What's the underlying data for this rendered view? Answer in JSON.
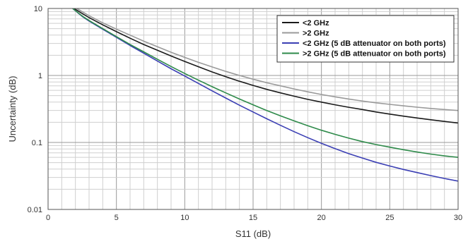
{
  "chart_data": {
    "type": "line",
    "xlabel": "S11 (dB)",
    "ylabel": "Uncertainty (dB)",
    "xlim": [
      0,
      30
    ],
    "ylim": [
      0.01,
      10
    ],
    "yscale": "log",
    "x_ticks": [
      0,
      5,
      10,
      15,
      20,
      25,
      30
    ],
    "x_tick_labels": [
      "0",
      "5",
      "10",
      "15",
      "20",
      "25",
      "30"
    ],
    "y_ticks": [
      0.01,
      0.1,
      1,
      10
    ],
    "y_tick_labels": [
      "0.01",
      "0.1",
      "1",
      "10"
    ],
    "grid": true,
    "legend_position": "top-right",
    "series": [
      {
        "name": "<2 GHz",
        "color": "#1a1a1a",
        "x": [
          1.9,
          2.5,
          3,
          4,
          5,
          6,
          7,
          8,
          9,
          10,
          11,
          12,
          13,
          14,
          15,
          16,
          17,
          18,
          19,
          20,
          21,
          22,
          23,
          24,
          25,
          26,
          27,
          28,
          29,
          30
        ],
        "y": [
          10,
          8.4,
          7.3,
          5.7,
          4.5,
          3.6,
          2.9,
          2.38,
          1.95,
          1.62,
          1.35,
          1.13,
          0.96,
          0.82,
          0.71,
          0.62,
          0.55,
          0.49,
          0.44,
          0.4,
          0.365,
          0.335,
          0.31,
          0.285,
          0.265,
          0.247,
          0.232,
          0.218,
          0.206,
          0.195
        ]
      },
      {
        "name": ">2 GHz",
        "color": "#9a9a9a",
        "x": [
          2.1,
          3,
          4,
          5,
          6,
          7,
          8,
          9,
          10,
          11,
          12,
          13,
          14,
          15,
          16,
          17,
          18,
          19,
          20,
          21,
          22,
          23,
          24,
          25,
          26,
          27,
          28,
          29,
          30
        ],
        "y": [
          10,
          7.8,
          6.1,
          4.9,
          4.0,
          3.25,
          2.68,
          2.22,
          1.86,
          1.57,
          1.34,
          1.15,
          1.0,
          0.88,
          0.78,
          0.7,
          0.63,
          0.57,
          0.52,
          0.48,
          0.445,
          0.415,
          0.39,
          0.37,
          0.352,
          0.336,
          0.322,
          0.31,
          0.3
        ]
      },
      {
        "name": "<2 GHz (5 dB attenuator on both ports)",
        "color": "#3b3fb4",
        "x": [
          1.8,
          2.5,
          3,
          4,
          5,
          6,
          7,
          8,
          9,
          10,
          11,
          12,
          13,
          14,
          15,
          16,
          17,
          18,
          19,
          20,
          21,
          22,
          23,
          24,
          25,
          26,
          27,
          28,
          29,
          30
        ],
        "y": [
          10,
          7.6,
          6.5,
          4.9,
          3.7,
          2.8,
          2.15,
          1.64,
          1.26,
          0.98,
          0.76,
          0.59,
          0.46,
          0.36,
          0.285,
          0.226,
          0.18,
          0.145,
          0.118,
          0.097,
          0.081,
          0.068,
          0.0585,
          0.0505,
          0.0445,
          0.0395,
          0.0355,
          0.032,
          0.029,
          0.0265
        ]
      },
      {
        "name": ">2 GHz (5 dB attenuator on both ports)",
        "color": "#2e8a4a",
        "x": [
          1.8,
          2.5,
          3,
          4,
          5,
          6,
          7,
          8,
          9,
          10,
          11,
          12,
          13,
          14,
          15,
          16,
          17,
          18,
          19,
          20,
          21,
          22,
          23,
          24,
          25,
          26,
          27,
          28,
          29,
          30
        ],
        "y": [
          10,
          7.7,
          6.6,
          5.0,
          3.8,
          2.9,
          2.25,
          1.74,
          1.36,
          1.07,
          0.85,
          0.68,
          0.55,
          0.445,
          0.365,
          0.3,
          0.25,
          0.21,
          0.178,
          0.152,
          0.132,
          0.116,
          0.103,
          0.093,
          0.085,
          0.078,
          0.072,
          0.067,
          0.063,
          0.06
        ]
      }
    ]
  }
}
